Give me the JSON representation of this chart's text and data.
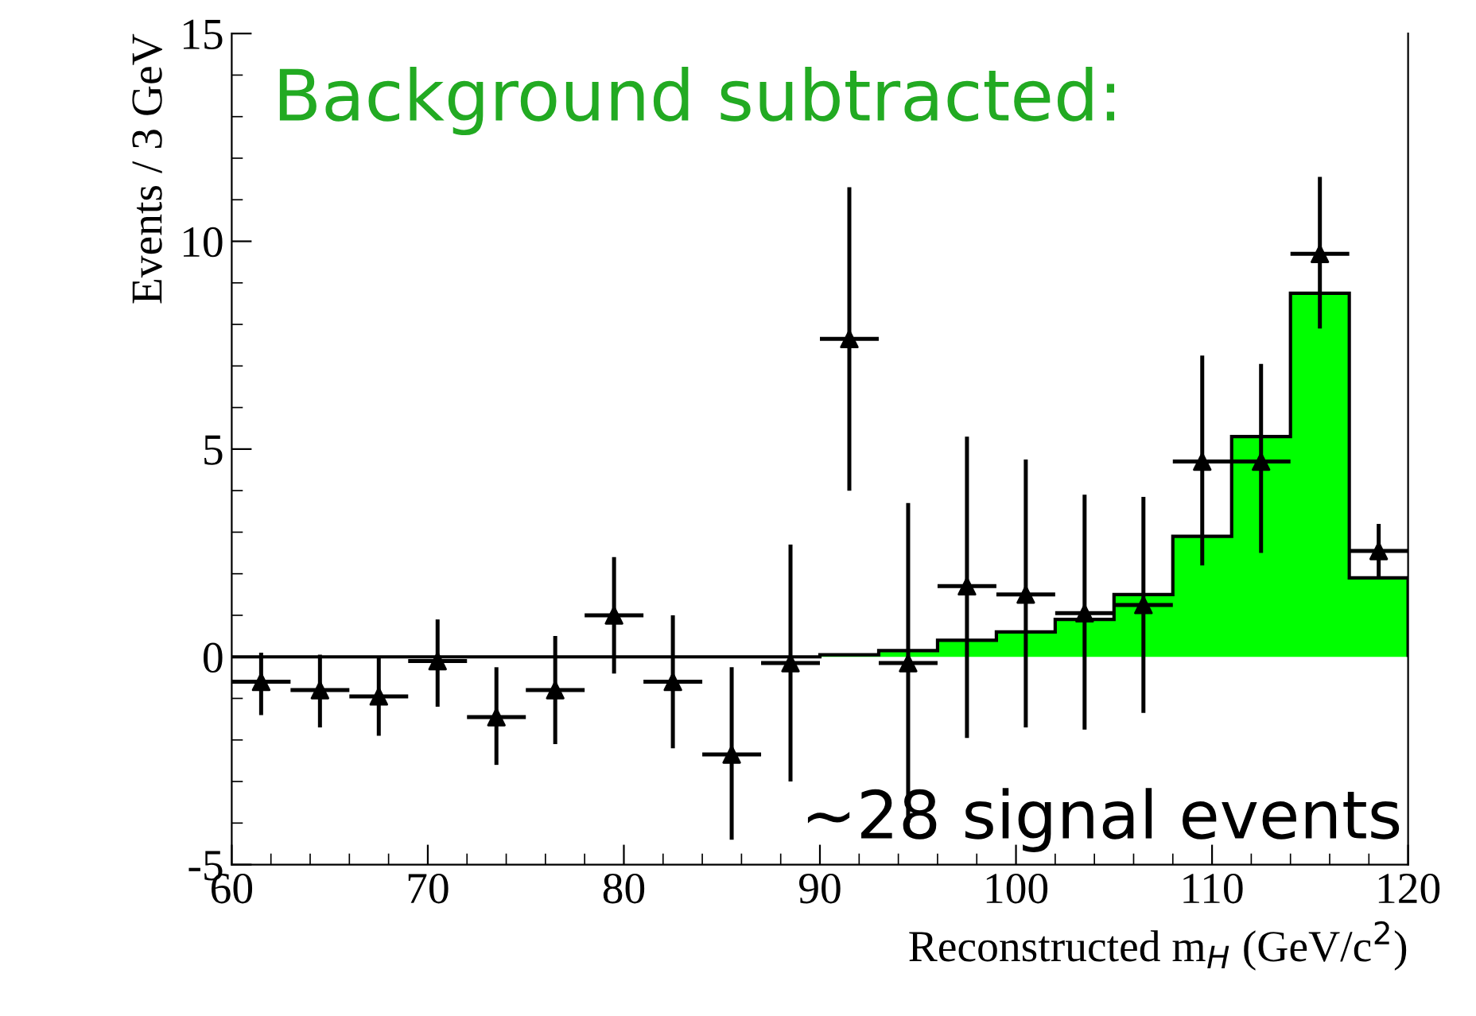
{
  "chart_data": {
    "type": "histogram",
    "title": "Background subtracted:",
    "xlabel": "Reconstructed m$_{H}$ (GeV/c$^{2}$)",
    "ylabel": "Events / 3 GeV",
    "annotations": [
      "~28 signal events"
    ],
    "bins": [
      60,
      63,
      66,
      69,
      72,
      75,
      78,
      81,
      84,
      87,
      90,
      93,
      96,
      99,
      102,
      105,
      108,
      111,
      114,
      117,
      120
    ],
    "values": [
      0,
      0,
      0,
      0,
      0,
      0,
      0,
      0,
      0,
      0,
      0.05,
      0.15,
      0.4,
      0.6,
      0.9,
      1.5,
      2.9,
      5.3,
      8.75,
      1.9
    ],
    "color": "#00ff00",
    "series": [
      {
        "type": "scatter",
        "color": "#000000",
        "marker": "triangle",
        "x": [
          61.5,
          64.5,
          67.5,
          70.5,
          73.5,
          76.5,
          79.5,
          82.5,
          85.5,
          88.5,
          91.5,
          94.5,
          97.5,
          100.5,
          103.5,
          106.5,
          109.5,
          112.5,
          115.5,
          118.5
        ],
        "values": [
          -0.6,
          -0.8,
          -0.95,
          -0.1,
          -1.45,
          -0.8,
          1.0,
          -0.6,
          -2.35,
          -0.15,
          7.65,
          -0.15,
          1.7,
          1.5,
          1.05,
          1.25,
          4.7,
          4.7,
          9.7,
          2.55
        ],
        "errors": [
          [
            -1.4,
            0.1
          ],
          [
            -1.7,
            0.05
          ],
          [
            -1.9,
            0.0
          ],
          [
            -1.2,
            0.9
          ],
          [
            -2.6,
            -0.25
          ],
          [
            -2.1,
            0.5
          ],
          [
            -0.4,
            2.4
          ],
          [
            -2.2,
            1.0
          ],
          [
            -4.4,
            -0.25
          ],
          [
            -3.0,
            2.7
          ],
          [
            4.0,
            11.3
          ],
          [
            -4.0,
            3.7
          ],
          [
            -1.95,
            5.3
          ],
          [
            -1.7,
            4.75
          ],
          [
            -1.75,
            3.9
          ],
          [
            -1.35,
            3.85
          ],
          [
            2.2,
            7.25
          ],
          [
            2.5,
            7.05
          ],
          [
            7.9,
            11.55
          ],
          [
            1.9,
            3.2
          ]
        ],
        "xerrors": [
          1.5,
          1.5,
          1.5,
          1.5,
          1.5,
          1.5,
          1.5,
          1.5,
          1.5,
          1.5,
          1.5,
          1.5,
          1.5,
          1.5,
          1.5,
          1.5,
          1.5,
          1.5,
          1.5,
          1.5
        ]
      }
    ],
    "xlim": [
      60,
      120
    ],
    "ylim": [
      -5,
      15
    ],
    "xticks": [
      60,
      70,
      80,
      90,
      100,
      110,
      120
    ],
    "yticks": [
      -5,
      0,
      5,
      10,
      15
    ],
    "grid": false,
    "legend": false
  }
}
